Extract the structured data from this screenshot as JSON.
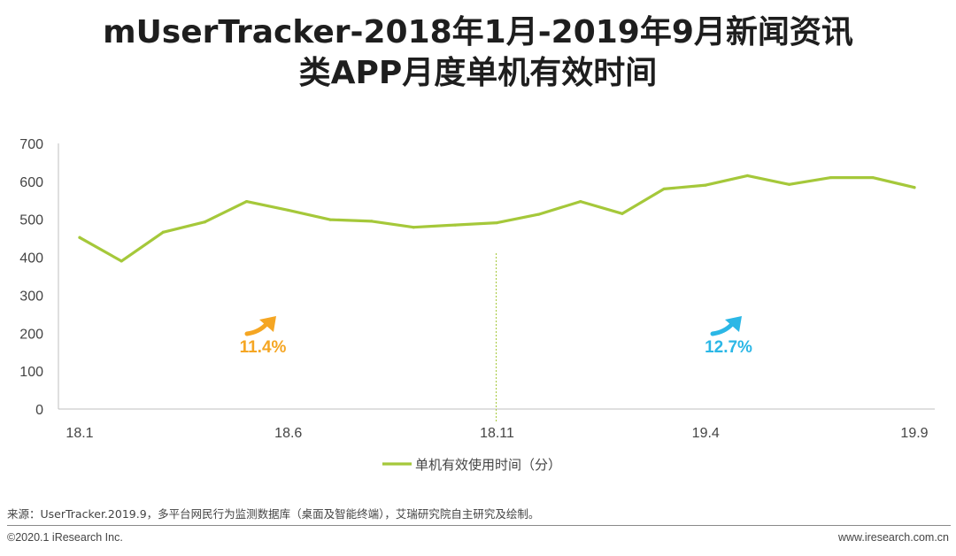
{
  "title": {
    "line1": "mUserTracker-2018年1月-2019年9月新闻资讯",
    "line2": "类APP月度单机有效时间"
  },
  "colors": {
    "line": "#a5c83a",
    "axis": "#bfbfbf",
    "annotation_left": "#f5a623",
    "annotation_right": "#2bb7e6",
    "divider": "#a5c83a"
  },
  "chart_data": {
    "type": "line",
    "title": "mUserTracker-2018年1月-2019年9月新闻资讯类APP月度单机有效时间",
    "xlabel": "",
    "ylabel": "",
    "ylim": [
      0,
      700
    ],
    "yticks": [
      0,
      100,
      200,
      300,
      400,
      500,
      600,
      700
    ],
    "categories": [
      "18.1",
      "18.2",
      "18.3",
      "18.4",
      "18.5",
      "18.6",
      "18.7",
      "18.8",
      "18.9",
      "18.10",
      "18.11",
      "18.12",
      "19.1",
      "19.2",
      "19.3",
      "19.4",
      "19.5",
      "19.6",
      "19.7",
      "19.8",
      "19.9"
    ],
    "xtick_labels": [
      "18.1",
      "18.6",
      "18.11",
      "19.4",
      "19.9"
    ],
    "xtick_indices": [
      0,
      5,
      10,
      15,
      20
    ],
    "series": [
      {
        "name": "单机有效使用时间（分）",
        "values": [
          452,
          390,
          466,
          493,
          547,
          524,
          499,
          495,
          479,
          485,
          491,
          513,
          547,
          515,
          580,
          590,
          615,
          592,
          610,
          610,
          584
        ]
      }
    ],
    "divider_index": 10,
    "annotations": [
      {
        "text": "11.4%",
        "color": "annotation_left",
        "position": "left-half"
      },
      {
        "text": "12.7%",
        "color": "annotation_right",
        "position": "right-half"
      }
    ],
    "legend_position": "bottom-center"
  },
  "source": "来源：UserTracker.2019.9，多平台网民行为监测数据库（桌面及智能终端），艾瑞研究院自主研究及绘制。",
  "footer": {
    "copyright": "©2020.1 iResearch Inc.",
    "website": "www.iresearch.com.cn"
  }
}
